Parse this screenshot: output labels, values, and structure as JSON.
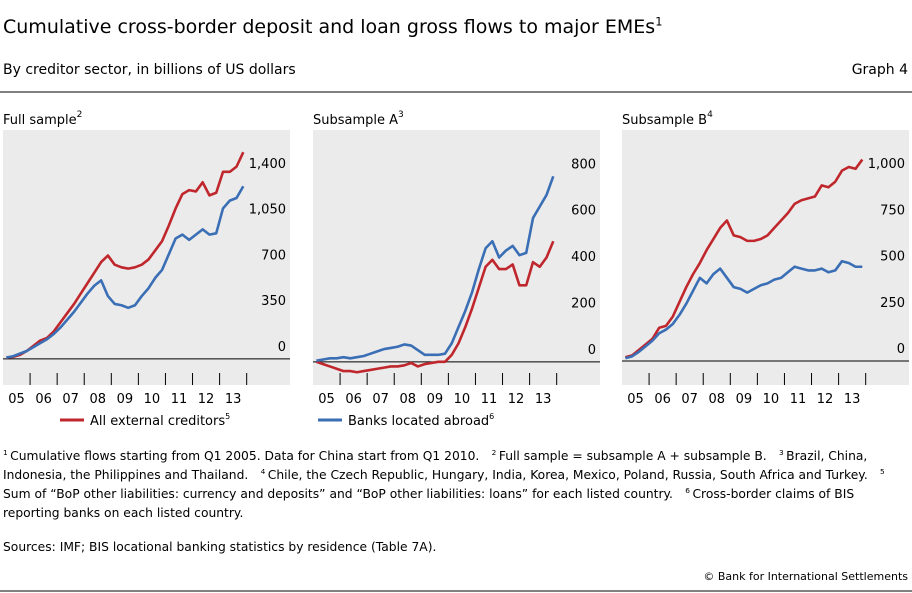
{
  "header": {
    "title": "Cumulative cross-border deposit and loan gross flows to major EMEs",
    "title_note": "1",
    "subtitle": "By creditor sector, in billions of US dollars",
    "graph_label": "Graph 4"
  },
  "chart_data": [
    {
      "type": "line",
      "title": "Full sample",
      "title_note": "2",
      "x": [
        2005.125,
        2005.375,
        2005.625,
        2005.875,
        2006.125,
        2006.375,
        2006.625,
        2006.875,
        2007.125,
        2007.375,
        2007.625,
        2007.875,
        2008.125,
        2008.375,
        2008.625,
        2008.875,
        2009.125,
        2009.375,
        2009.625,
        2009.875,
        2010.125,
        2010.375,
        2010.625,
        2010.875,
        2011.125,
        2011.375,
        2011.625,
        2011.875,
        2012.125,
        2012.375,
        2012.625,
        2012.875,
        2013.125,
        2013.375,
        2013.625,
        2013.875
      ],
      "xlim": [
        2005,
        2015.6
      ],
      "xticks": [
        {
          "value": 2005.5,
          "label": "05"
        },
        {
          "value": 2006.5,
          "label": "06"
        },
        {
          "value": 2007.5,
          "label": "07"
        },
        {
          "value": 2008.5,
          "label": "08"
        },
        {
          "value": 2009.5,
          "label": "09"
        },
        {
          "value": 2010.5,
          "label": "10"
        },
        {
          "value": 2011.5,
          "label": "11"
        },
        {
          "value": 2012.5,
          "label": "12"
        },
        {
          "value": 2013.5,
          "label": "13"
        }
      ],
      "ylim": [
        -200,
        1750
      ],
      "yticks": [
        0,
        350,
        700,
        {
          "value": 1050,
          "label": "1,050"
        },
        {
          "value": 1400,
          "label": "1,400"
        }
      ],
      "series": [
        {
          "name": "All external creditors",
          "name_note": "5",
          "color": "#c0272d",
          "values": [
            10,
            15,
            30,
            60,
            100,
            140,
            160,
            210,
            280,
            350,
            420,
            500,
            580,
            660,
            740,
            790,
            720,
            700,
            690,
            700,
            720,
            760,
            830,
            900,
            1020,
            1150,
            1260,
            1290,
            1280,
            1350,
            1250,
            1270,
            1430,
            1430,
            1470,
            1580
          ]
        },
        {
          "color": "#3a6eb5",
          "values": [
            10,
            20,
            40,
            60,
            90,
            120,
            150,
            190,
            240,
            300,
            360,
            430,
            500,
            560,
            600,
            480,
            420,
            410,
            390,
            410,
            480,
            540,
            620,
            680,
            800,
            920,
            950,
            910,
            950,
            990,
            950,
            960,
            1150,
            1210,
            1230,
            1320
          ]
        }
      ]
    },
    {
      "type": "line",
      "title": "Subsample A",
      "title_note": "3",
      "x": [
        2005.125,
        2005.375,
        2005.625,
        2005.875,
        2006.125,
        2006.375,
        2006.625,
        2006.875,
        2007.125,
        2007.375,
        2007.625,
        2007.875,
        2008.125,
        2008.375,
        2008.625,
        2008.875,
        2009.125,
        2009.375,
        2009.625,
        2009.875,
        2010.125,
        2010.375,
        2010.625,
        2010.875,
        2011.125,
        2011.375,
        2011.625,
        2011.875,
        2012.125,
        2012.375,
        2012.625,
        2012.875,
        2013.125,
        2013.375,
        2013.625,
        2013.875
      ],
      "xlim": [
        2005,
        2015.6
      ],
      "xticks": [
        {
          "value": 2005.5,
          "label": "05"
        },
        {
          "value": 2006.5,
          "label": "06"
        },
        {
          "value": 2007.5,
          "label": "07"
        },
        {
          "value": 2008.5,
          "label": "08"
        },
        {
          "value": 2009.5,
          "label": "09"
        },
        {
          "value": 2010.5,
          "label": "10"
        },
        {
          "value": 2011.5,
          "label": "11"
        },
        {
          "value": 2012.5,
          "label": "12"
        },
        {
          "value": 2013.5,
          "label": "13"
        }
      ],
      "ylim": [
        -100,
        1000
      ],
      "yticks": [
        0,
        200,
        400,
        600,
        800
      ],
      "series": [
        {
          "color": "#c0272d",
          "values": [
            0,
            -10,
            -20,
            -30,
            -40,
            -40,
            -45,
            -40,
            -35,
            -30,
            -25,
            -20,
            -20,
            -15,
            -5,
            -20,
            -10,
            -5,
            0,
            0,
            30,
            80,
            150,
            230,
            320,
            410,
            440,
            400,
            400,
            420,
            330,
            330,
            430,
            410,
            450,
            520
          ]
        },
        {
          "name": "Banks located abroad",
          "name_note": "6",
          "color": "#3a6eb5",
          "values": [
            5,
            10,
            15,
            15,
            20,
            15,
            20,
            25,
            35,
            45,
            55,
            60,
            65,
            75,
            70,
            50,
            30,
            30,
            30,
            35,
            80,
            150,
            220,
            300,
            400,
            490,
            520,
            450,
            480,
            500,
            460,
            470,
            620,
            670,
            720,
            800
          ]
        }
      ]
    },
    {
      "type": "line",
      "title": "Subsample B",
      "title_note": "4",
      "x": [
        2005.125,
        2005.375,
        2005.625,
        2005.875,
        2006.125,
        2006.375,
        2006.625,
        2006.875,
        2007.125,
        2007.375,
        2007.625,
        2007.875,
        2008.125,
        2008.375,
        2008.625,
        2008.875,
        2009.125,
        2009.375,
        2009.625,
        2009.875,
        2010.125,
        2010.375,
        2010.625,
        2010.875,
        2011.125,
        2011.375,
        2011.625,
        2011.875,
        2012.125,
        2012.375,
        2012.625,
        2012.875,
        2013.125,
        2013.375,
        2013.625,
        2013.875
      ],
      "xlim": [
        2005,
        2015.6
      ],
      "xticks": [
        {
          "value": 2005.5,
          "label": "05"
        },
        {
          "value": 2006.5,
          "label": "06"
        },
        {
          "value": 2007.5,
          "label": "07"
        },
        {
          "value": 2008.5,
          "label": "08"
        },
        {
          "value": 2009.5,
          "label": "09"
        },
        {
          "value": 2010.5,
          "label": "10"
        },
        {
          "value": 2011.5,
          "label": "11"
        },
        {
          "value": 2012.5,
          "label": "12"
        },
        {
          "value": 2013.5,
          "label": "13"
        }
      ],
      "ylim": [
        -130,
        1250
      ],
      "yticks": [
        0,
        250,
        500,
        750,
        {
          "value": 1000,
          "label": "1,000"
        }
      ],
      "series": [
        {
          "color": "#c0272d",
          "values": [
            20,
            30,
            60,
            90,
            120,
            180,
            190,
            240,
            320,
            400,
            470,
            530,
            600,
            660,
            720,
            760,
            680,
            670,
            650,
            650,
            660,
            680,
            720,
            760,
            800,
            850,
            870,
            880,
            890,
            950,
            940,
            970,
            1030,
            1050,
            1040,
            1090
          ]
        },
        {
          "color": "#3a6eb5",
          "values": [
            15,
            25,
            50,
            80,
            110,
            150,
            170,
            200,
            250,
            310,
            380,
            450,
            420,
            470,
            500,
            450,
            400,
            390,
            370,
            390,
            410,
            420,
            440,
            450,
            480,
            510,
            500,
            490,
            490,
            500,
            480,
            490,
            540,
            530,
            510,
            510
          ]
        }
      ]
    }
  ],
  "notes": [
    {
      "mark": "1",
      "text": "Cumulative flows starting from Q1 2005. Data for China start from Q1 2010."
    },
    {
      "mark": "2",
      "text": "Full sample = subsample A + subsample B."
    },
    {
      "mark": "3",
      "text": "Brazil, China, Indonesia, the Philippines and Thailand."
    },
    {
      "mark": "4",
      "text": "Chile, the Czech Republic, Hungary, India, Korea, Mexico, Poland, Russia, South Africa and Turkey."
    },
    {
      "mark": "5",
      "text": "Sum of “BoP other liabilities: currency and deposits” and “BoP other liabilities: loans” for each listed country."
    },
    {
      "mark": "6",
      "text": "Cross-border claims of BIS reporting banks on each listed country."
    }
  ],
  "footer": {
    "sources": "Sources: IMF; BIS locational banking statistics by residence (Table 7A).",
    "copyright": "© Bank for International Settlements"
  }
}
